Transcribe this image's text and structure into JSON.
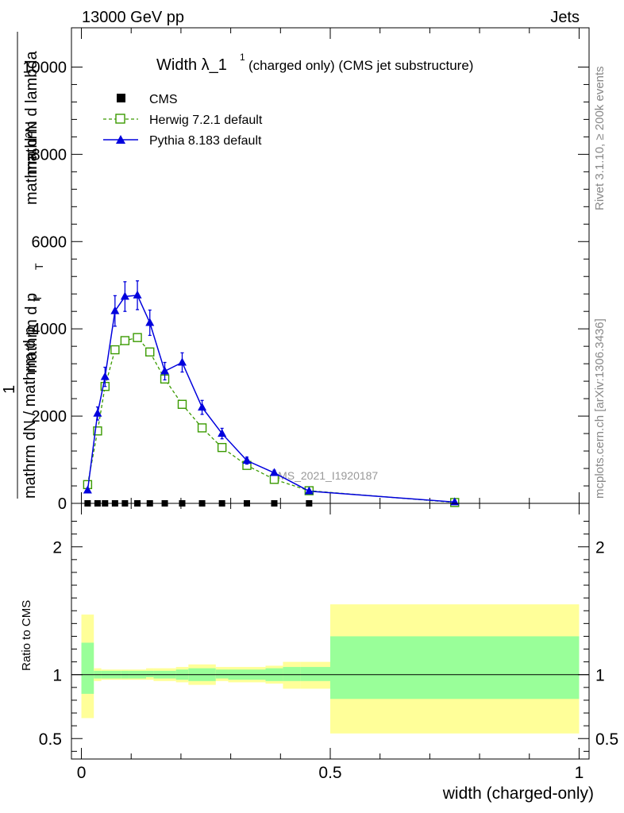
{
  "header": {
    "left": "13000 GeV pp",
    "right": "Jets",
    "side_top": "Rivet 3.1.10, ≥ 200k events",
    "side_bottom": "mcplots.cern.ch [arXiv:1306.3436]"
  },
  "legend": {
    "title_main": "Width λ_1",
    "title_sup": "1",
    "title_rest": "(charged only) (CMS jet substructure)",
    "cms": "CMS",
    "herwig": "Herwig 7.2.1 default",
    "pythia": "Pythia 8.183 default"
  },
  "watermark": "CMS_2021_I1920187",
  "axes": {
    "ylabel_line1": "mathrm d²N",
    "ylabel_line1_sub": "T",
    "ylabel_line1b": "mathrm d p",
    "ylabel_line1c": "mathrm d lambda",
    "ylabel_numerator": "1",
    "ylabel_denominator": "mathrm dN / mathrm d p",
    "ylabel_denominator_sub": "T",
    "ylabel_den_rest": "mathrm d p",
    "ratio_ylabel": "Ratio to CMS",
    "xlabel": "width (charged-only)"
  },
  "colors": {
    "herwig": "#3a9a00",
    "pythia": "#0000dd",
    "band_outer": "#ffff99",
    "band_inner": "#99ff99"
  },
  "chart_data": [
    {
      "type": "line",
      "title": "Width λ_1^1 (charged only) (CMS jet substructure)",
      "xlabel": "width (charged-only)",
      "ylabel": "1 / mathrm dN/mathrm d p_T mathrm d²N / mathrm d p_T mathrm d lambda",
      "xlim": [
        -0.02,
        1.02
      ],
      "ylim": [
        0,
        10900
      ],
      "yticks": [
        0,
        2000,
        4000,
        6000,
        8000,
        10000
      ],
      "ytick_labels": [
        "0",
        "2000",
        "4000",
        "6000",
        "8000",
        "10000"
      ],
      "x": [
        0.0125,
        0.0325,
        0.0475,
        0.0675,
        0.0875,
        0.1125,
        0.1375,
        0.1675,
        0.2025,
        0.2425,
        0.2825,
        0.3325,
        0.3875,
        0.4575,
        0.75
      ],
      "series": [
        {
          "name": "CMS",
          "marker": "square",
          "values": [
            0,
            0,
            0,
            0,
            0,
            0,
            0,
            0,
            0,
            0,
            0,
            0,
            0,
            0,
            0
          ]
        },
        {
          "name": "Herwig 7.2.1 default",
          "marker": "open-square",
          "style": "dashed",
          "values": [
            430,
            1660,
            2680,
            3520,
            3730,
            3800,
            3470,
            2850,
            2270,
            1730,
            1280,
            870,
            550,
            290,
            20
          ]
        },
        {
          "name": "Pythia 8.183 default",
          "marker": "triangle",
          "style": "solid",
          "values": [
            300,
            2060,
            2900,
            4410,
            4740,
            4770,
            4140,
            3030,
            3230,
            2200,
            1600,
            980,
            700,
            280,
            30
          ],
          "errors": [
            40,
            150,
            220,
            350,
            340,
            330,
            290,
            200,
            220,
            160,
            120,
            80,
            60,
            30,
            10
          ]
        }
      ]
    },
    {
      "type": "area",
      "title": "Ratio to CMS",
      "ylabel": "Ratio to CMS",
      "xlabel": "width (charged-only)",
      "xlim": [
        -0.02,
        1.02
      ],
      "ylim": [
        0.34,
        2.34
      ],
      "yticks": [
        0.5,
        1,
        2
      ],
      "ytick_labels": [
        "0.5",
        "1",
        "2"
      ],
      "xticks": [
        0,
        0.5,
        1
      ],
      "xtick_labels": [
        "0",
        "0.5",
        "1"
      ],
      "bins": [
        [
          0.0,
          0.025
        ],
        [
          0.025,
          0.04
        ],
        [
          0.04,
          0.055
        ],
        [
          0.055,
          0.08
        ],
        [
          0.08,
          0.095
        ],
        [
          0.095,
          0.13
        ],
        [
          0.13,
          0.145
        ],
        [
          0.145,
          0.19
        ],
        [
          0.19,
          0.215
        ],
        [
          0.215,
          0.27
        ],
        [
          0.27,
          0.295
        ],
        [
          0.295,
          0.37
        ],
        [
          0.37,
          0.405
        ],
        [
          0.405,
          0.44
        ],
        [
          0.44,
          0.5
        ],
        [
          0.5,
          1.0
        ]
      ],
      "outer_low": [
        0.66,
        0.95,
        0.96,
        0.96,
        0.96,
        0.96,
        0.96,
        0.95,
        0.94,
        0.92,
        0.95,
        0.94,
        0.93,
        0.89,
        0.89,
        0.54
      ],
      "outer_high": [
        1.47,
        1.05,
        1.04,
        1.04,
        1.04,
        1.04,
        1.05,
        1.05,
        1.06,
        1.08,
        1.06,
        1.06,
        1.07,
        1.1,
        1.1,
        1.55
      ],
      "inner_low": [
        0.85,
        0.97,
        0.97,
        0.97,
        0.97,
        0.97,
        0.98,
        0.97,
        0.96,
        0.95,
        0.97,
        0.96,
        0.95,
        0.95,
        0.95,
        0.81
      ],
      "inner_high": [
        1.25,
        1.03,
        1.03,
        1.03,
        1.03,
        1.03,
        1.03,
        1.03,
        1.04,
        1.05,
        1.04,
        1.04,
        1.05,
        1.06,
        1.06,
        1.3
      ],
      "reference": 1
    }
  ]
}
